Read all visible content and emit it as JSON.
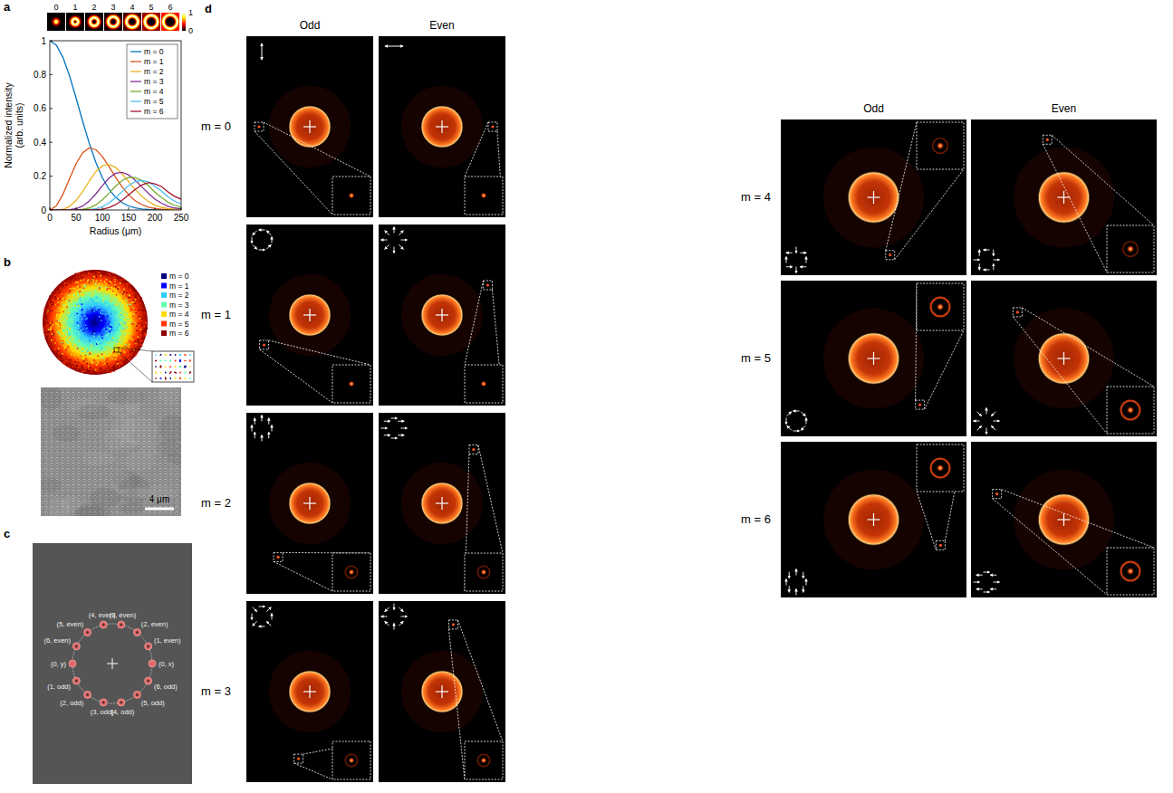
{
  "chart_data": {
    "type": "line",
    "xlabel": "Radius (μm)",
    "ylabel": "Normalized intensity (arb. units)",
    "x": [
      0,
      12.5,
      25,
      37.5,
      50,
      62.5,
      75,
      87.5,
      100,
      112.5,
      125,
      137.5,
      150,
      162.5,
      175,
      187.5,
      200,
      212.5,
      225,
      237.5,
      250
    ],
    "xlim": [
      0,
      250
    ],
    "ylim": [
      0,
      1
    ],
    "xticks": [
      0,
      50,
      100,
      150,
      200,
      250
    ],
    "yticks": [
      0,
      0.2,
      0.4,
      0.6,
      0.8,
      1
    ],
    "grid": false,
    "legend": "upper right",
    "series": [
      {
        "name": "m = 0",
        "color": "#0072bd",
        "values": [
          1,
          0.974,
          0.902,
          0.793,
          0.662,
          0.524,
          0.395,
          0.282,
          0.191,
          0.123,
          0.076,
          0.044,
          0.024,
          0.013,
          0.006,
          0.003,
          0.001,
          0.001,
          0,
          0,
          0
        ]
      },
      {
        "name": "m = 1",
        "color": "#d95319",
        "values": [
          0,
          0.025,
          0.093,
          0.184,
          0.273,
          0.339,
          0.367,
          0.357,
          0.316,
          0.257,
          0.195,
          0.137,
          0.09,
          0.055,
          0.032,
          0.017,
          0.009,
          0.004,
          0.002,
          0.001,
          0
        ]
      },
      {
        "name": "m = 2",
        "color": "#edb120",
        "values": [
          0,
          0,
          0.005,
          0.021,
          0.057,
          0.109,
          0.171,
          0.226,
          0.261,
          0.269,
          0.252,
          0.214,
          0.168,
          0.121,
          0.081,
          0.051,
          0.029,
          0.016,
          0.008,
          0.004,
          0.002
        ]
      },
      {
        "name": "m = 3",
        "color": "#7e2f8e",
        "values": [
          0,
          0,
          0,
          0.002,
          0.008,
          0.023,
          0.053,
          0.095,
          0.144,
          0.188,
          0.217,
          0.223,
          0.208,
          0.176,
          0.137,
          0.099,
          0.064,
          0.04,
          0.022,
          0.012,
          0.007
        ]
      },
      {
        "name": "m = 4",
        "color": "#77ac30",
        "values": [
          0,
          0,
          0,
          0,
          0.001,
          0.004,
          0.012,
          0.03,
          0.06,
          0.098,
          0.14,
          0.174,
          0.193,
          0.192,
          0.173,
          0.144,
          0.106,
          0.075,
          0.046,
          0.028,
          0.018
        ]
      },
      {
        "name": "m = 5",
        "color": "#4dbeee",
        "values": [
          0,
          0,
          0,
          0,
          0,
          0,
          0.002,
          0.008,
          0.02,
          0.041,
          0.072,
          0.109,
          0.144,
          0.168,
          0.175,
          0.167,
          0.14,
          0.112,
          0.077,
          0.052,
          0.037
        ]
      },
      {
        "name": "m = 6",
        "color": "#a2142f",
        "values": [
          0,
          0,
          0,
          0,
          0,
          0,
          0,
          0.002,
          0.005,
          0.014,
          0.031,
          0.057,
          0.089,
          0.122,
          0.148,
          0.162,
          0.154,
          0.139,
          0.107,
          0.081,
          0.064
        ]
      }
    ]
  },
  "panel_a": {
    "letter": "a",
    "thumbnail_labels": [
      "0",
      "1",
      "2",
      "3",
      "4",
      "5",
      "6"
    ],
    "colorbar_ticks": [
      0,
      1
    ]
  },
  "panel_b": {
    "letter": "b",
    "mode_labels": [
      "m = 0",
      "m = 1",
      "m = 2",
      "m = 3",
      "m = 4",
      "m = 5",
      "m = 6"
    ],
    "colors": [
      "#00007f",
      "#0000ff",
      "#33ccff",
      "#66ffb0",
      "#ffdd00",
      "#ff3300",
      "#8b0000"
    ],
    "scale_bar": "4 μm"
  },
  "panel_c": {
    "letter": "c",
    "spots": [
      "(0, x)",
      "(1, even)",
      "(2, even)",
      "(3, even)",
      "(4, even)",
      "(5, even)",
      "(6, even)",
      "(0, y)",
      "(1, odd)",
      "(2, odd)",
      "(3, odd)",
      "(4, odd)",
      "(5, odd)",
      "(6, odd)"
    ]
  },
  "panel_d": {
    "letter": "d",
    "columns": [
      "Odd",
      "Even"
    ],
    "rows": [
      "m = 0",
      "m = 1",
      "m = 2",
      "m = 3",
      "m = 4",
      "m = 5",
      "m = 6"
    ]
  }
}
